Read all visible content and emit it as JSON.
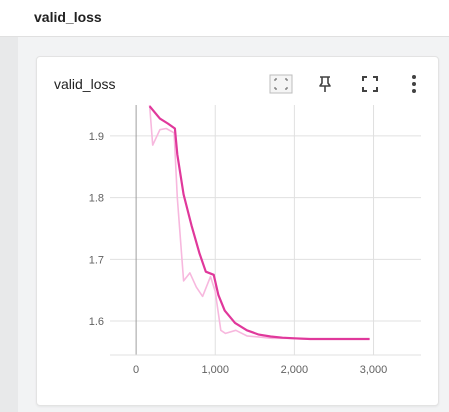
{
  "section": {
    "title": "valid_loss"
  },
  "card": {
    "title": "valid_loss",
    "toolbar": [
      {
        "name": "fit-domain-icon"
      },
      {
        "name": "pin-icon"
      },
      {
        "name": "fullscreen-icon"
      },
      {
        "name": "more-vert-icon"
      }
    ]
  },
  "colors": {
    "smoothed": "#e0389b",
    "raw": "#f7b8de",
    "grid": "#e0e0e0",
    "axis_zero": "#9e9e9e"
  },
  "chart_data": {
    "type": "line",
    "title": "",
    "xlabel": "",
    "ylabel": "",
    "xlim": [
      -330,
      3600
    ],
    "ylim": [
      1.545,
      1.95
    ],
    "xticks": [
      0,
      1000,
      2000,
      3000
    ],
    "xtick_labels": [
      "0",
      "1,000",
      "2,000",
      "3,000"
    ],
    "yticks": [
      1.6,
      1.7,
      1.8,
      1.9
    ],
    "ytick_labels": [
      "1.6",
      "1.7",
      "1.8",
      "1.9"
    ],
    "grid": true,
    "series": [
      {
        "role": "raw",
        "x": [
          170,
          210,
          300,
          380,
          480,
          520,
          600,
          680,
          760,
          840,
          940,
          1000,
          1070,
          1130,
          1260,
          1400,
          1560,
          1720,
          1900,
          2100,
          2400,
          2700,
          2950
        ],
        "y": [
          1.95,
          1.885,
          1.91,
          1.912,
          1.905,
          1.8,
          1.665,
          1.678,
          1.655,
          1.64,
          1.672,
          1.648,
          1.585,
          1.58,
          1.585,
          1.576,
          1.574,
          1.572,
          1.572,
          1.571,
          1.571,
          1.571,
          1.571
        ]
      },
      {
        "role": "smoothed",
        "x": [
          170,
          300,
          400,
          490,
          520,
          600,
          700,
          800,
          880,
          980,
          1040,
          1120,
          1250,
          1400,
          1550,
          1700,
          1850,
          2000,
          2200,
          2500,
          2800,
          2950
        ],
        "y": [
          1.948,
          1.928,
          1.92,
          1.912,
          1.87,
          1.805,
          1.755,
          1.71,
          1.68,
          1.675,
          1.642,
          1.617,
          1.597,
          1.585,
          1.578,
          1.575,
          1.573,
          1.572,
          1.571,
          1.571,
          1.571,
          1.571
        ]
      }
    ]
  }
}
